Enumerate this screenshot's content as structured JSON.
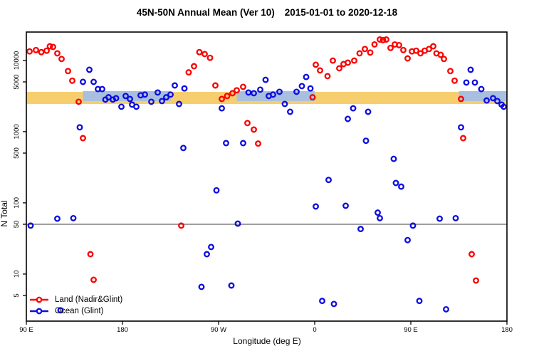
{
  "title": {
    "region_part": "45N-50N Annual Mean (Ver 10)",
    "date_part": "2015-01-01 to 2020-12-18"
  },
  "axes": {
    "x": {
      "label": "Longitude (deg E)",
      "range_axis_deg": [
        90,
        540
      ],
      "ticks": [
        {
          "pos": 90,
          "label": "90 E"
        },
        {
          "pos": 180,
          "label": "180"
        },
        {
          "pos": 270,
          "label": "90 W"
        },
        {
          "pos": 360,
          "label": "0"
        },
        {
          "pos": 450,
          "label": "90 E"
        },
        {
          "pos": 540,
          "label": "180"
        }
      ]
    },
    "y": {
      "label": "N Total",
      "scale": "log",
      "ylim": [
        2.2,
        25000
      ],
      "ticks": [
        {
          "v": 5,
          "label": "5"
        },
        {
          "v": 10,
          "label": "10"
        },
        {
          "v": 50,
          "label": "50"
        },
        {
          "v": 100,
          "label": "100"
        },
        {
          "v": 500,
          "label": "500"
        },
        {
          "v": 1000,
          "label": "1000"
        },
        {
          "v": 5000,
          "label": "5000"
        },
        {
          "v": 10000,
          "label": "10000"
        }
      ]
    }
  },
  "reference": {
    "gray_line_value": 50,
    "gray_line_color": "#7f7f7f",
    "orange_band": {
      "color": "#F6CE6E",
      "value_range": [
        2450,
        3620
      ],
      "lon_range": [
        90,
        540
      ]
    },
    "blue_band": {
      "color": "#A8BFDF",
      "value_range": [
        2690,
        3715
      ],
      "segments_lon": [
        [
          143,
          225
        ],
        [
          287,
          360
        ],
        [
          495,
          540
        ]
      ]
    }
  },
  "legend": {
    "items": [
      {
        "label": "Land (Nadir&Glint)",
        "color": "#FB0000"
      },
      {
        "label": "Ocean (Glint)",
        "color": "#0D0DE0"
      }
    ]
  },
  "chart_data": {
    "type": "scatter",
    "title": "45N-50N Annual Mean (Ver 10)   2015-01-01 to 2020-12-18",
    "xlabel": "Longitude (deg E)",
    "ylabel": "N Total",
    "x_axis_note": "axis runs 90E eastward wrapping: 90,180,-90(=270),0(=360),90(=450),180(=540)",
    "grid": false,
    "legend_position": "bottom-left",
    "series": [
      {
        "name": "Land (Nadir&Glint)",
        "color": "#FB0000",
        "points": [
          [
            93,
            13400
          ],
          [
            99,
            14000
          ],
          [
            104,
            13100
          ],
          [
            109,
            13700
          ],
          [
            112,
            15800
          ],
          [
            115,
            15500
          ],
          [
            119,
            12600
          ],
          [
            123,
            10500
          ],
          [
            129,
            7100
          ],
          [
            133,
            5200
          ],
          [
            139,
            2630
          ],
          [
            143,
            810
          ],
          [
            150,
            19
          ],
          [
            153,
            8.3
          ],
          [
            235,
            48
          ],
          [
            242,
            6800
          ],
          [
            247,
            8300
          ],
          [
            252,
            13100
          ],
          [
            257,
            12300
          ],
          [
            262,
            10900
          ],
          [
            267,
            4460
          ],
          [
            273,
            2880
          ],
          [
            278,
            3170
          ],
          [
            283,
            3470
          ],
          [
            287,
            3810
          ],
          [
            293,
            4260
          ],
          [
            297,
            1320
          ],
          [
            303,
            1070
          ],
          [
            307,
            680
          ],
          [
            358,
            3040
          ],
          [
            361,
            8700
          ],
          [
            365,
            7250
          ],
          [
            372,
            6030
          ],
          [
            377,
            9950
          ],
          [
            383,
            7760
          ],
          [
            387,
            8900
          ],
          [
            391,
            9300
          ],
          [
            397,
            9950
          ],
          [
            402,
            12600
          ],
          [
            407,
            14500
          ],
          [
            412,
            12900
          ],
          [
            416,
            16800
          ],
          [
            421,
            19700
          ],
          [
            424,
            19300
          ],
          [
            427,
            19700
          ],
          [
            431,
            15000
          ],
          [
            435,
            16800
          ],
          [
            439,
            16400
          ],
          [
            443,
            14000
          ],
          [
            447,
            10700
          ],
          [
            451,
            13400
          ],
          [
            455,
            13700
          ],
          [
            459,
            12600
          ],
          [
            463,
            13700
          ],
          [
            467,
            14500
          ],
          [
            471,
            15800
          ],
          [
            474,
            12600
          ],
          [
            478,
            12000
          ],
          [
            481,
            10500
          ],
          [
            487,
            7100
          ],
          [
            491,
            5200
          ],
          [
            497,
            2880
          ],
          [
            499,
            810
          ],
          [
            507,
            19
          ],
          [
            511,
            8.1
          ]
        ]
      },
      {
        "name": "Ocean (Glint)",
        "color": "#0D0DE0",
        "points": [
          [
            143,
            5000
          ],
          [
            149,
            7400
          ],
          [
            153,
            5000
          ],
          [
            157,
            3960
          ],
          [
            161,
            3960
          ],
          [
            164,
            2820
          ],
          [
            167,
            3040
          ],
          [
            171,
            2820
          ],
          [
            174,
            2950
          ],
          [
            179,
            2240
          ],
          [
            183,
            3170
          ],
          [
            187,
            2880
          ],
          [
            189,
            2400
          ],
          [
            193,
            2240
          ],
          [
            197,
            3240
          ],
          [
            201,
            3320
          ],
          [
            207,
            2630
          ],
          [
            213,
            3550
          ],
          [
            217,
            2690
          ],
          [
            221,
            3040
          ],
          [
            225,
            3320
          ],
          [
            229,
            4460
          ],
          [
            233,
            2450
          ],
          [
            238,
            4050
          ],
          [
            140,
            1150
          ],
          [
            237,
            590
          ],
          [
            119,
            60
          ],
          [
            134,
            61
          ],
          [
            94,
            48
          ],
          [
            122,
            3.1
          ],
          [
            273,
            2130
          ],
          [
            277,
            690
          ],
          [
            293,
            690
          ],
          [
            268,
            150
          ],
          [
            259,
            19
          ],
          [
            263,
            24
          ],
          [
            254,
            6.6
          ],
          [
            282,
            6.9
          ],
          [
            288,
            51
          ],
          [
            298,
            3550
          ],
          [
            303,
            3470
          ],
          [
            309,
            3890
          ],
          [
            314,
            5340
          ],
          [
            317,
            3170
          ],
          [
            321,
            3320
          ],
          [
            327,
            3630
          ],
          [
            332,
            2450
          ],
          [
            337,
            1900
          ],
          [
            343,
            3630
          ],
          [
            348,
            4360
          ],
          [
            352,
            5860
          ],
          [
            356,
            4050
          ],
          [
            361,
            89
          ],
          [
            367,
            4.2
          ],
          [
            373,
            210
          ],
          [
            378,
            3.8
          ],
          [
            389,
            91
          ],
          [
            391,
            1510
          ],
          [
            396,
            2130
          ],
          [
            403,
            43
          ],
          [
            408,
            745
          ],
          [
            410,
            1900
          ],
          [
            419,
            73
          ],
          [
            421,
            61
          ],
          [
            434,
            415
          ],
          [
            436,
            190
          ],
          [
            441,
            169
          ],
          [
            447,
            30
          ],
          [
            452,
            48
          ],
          [
            458,
            4.2
          ],
          [
            477,
            60
          ],
          [
            483,
            3.2
          ],
          [
            492,
            61
          ],
          [
            497,
            1150
          ],
          [
            502,
            4900
          ],
          [
            506,
            7400
          ],
          [
            510,
            4900
          ],
          [
            516,
            3960
          ],
          [
            521,
            2740
          ],
          [
            527,
            2950
          ],
          [
            531,
            2690
          ],
          [
            535,
            2400
          ],
          [
            537,
            2240
          ]
        ]
      }
    ]
  }
}
